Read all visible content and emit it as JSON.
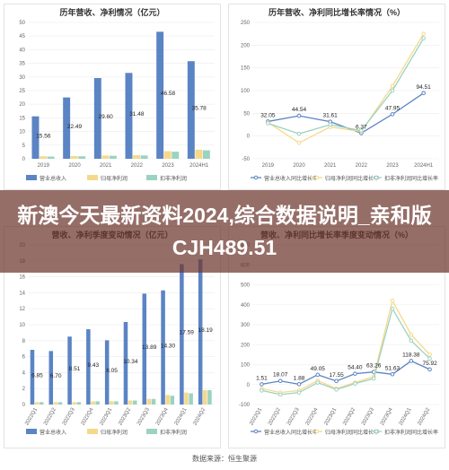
{
  "headline": "新澳今天最新资料2024,综合数据说明_亲和版CJH489.51",
  "source": "数据来源：恒生聚源",
  "colors": {
    "revenue": "#5b84c4",
    "net_profit": "#f5d98b",
    "deducted_profit": "#9bd3c1",
    "banner": "#6e362e"
  },
  "chart_data": [
    {
      "type": "bar",
      "title": "历年营收、净利情况（亿元）",
      "categories": [
        "2019",
        "2020",
        "2021",
        "2022",
        "2023",
        "2024H1"
      ],
      "series": [
        {
          "name": "营业总收入",
          "values": [
            15.56,
            22.49,
            29.6,
            31.48,
            46.58,
            35.78
          ]
        },
        {
          "name": "归母净利润",
          "values": [
            0.9,
            1.0,
            1.2,
            1.3,
            2.8,
            3.3
          ]
        },
        {
          "name": "扣非净利润",
          "values": [
            0.8,
            0.9,
            1.1,
            1.2,
            2.6,
            3.1
          ]
        }
      ],
      "data_labels": [
        "15.56",
        "22.49",
        "29.60",
        "31.48",
        "46.58",
        "35.78"
      ],
      "yticks": [
        "0",
        "5",
        "10",
        "15",
        "20",
        "25",
        "30",
        "35",
        "40",
        "45",
        "50"
      ],
      "ylim": [
        0,
        50
      ]
    },
    {
      "type": "line",
      "title": "历年营收、净利同比增长率情况（%）",
      "categories": [
        "2019",
        "2020",
        "2021",
        "2022",
        "2023",
        "2024H1"
      ],
      "series": [
        {
          "name": "营业总收入同比增长率",
          "values": [
            32.05,
            44.54,
            31.61,
            6.37,
            47.95,
            94.51
          ]
        },
        {
          "name": "归母净利润同比增长率",
          "values": [
            30,
            -15,
            20,
            10,
            110,
            225
          ]
        },
        {
          "name": "扣非净利润同比增长率",
          "values": [
            28,
            5,
            25,
            12,
            100,
            215
          ]
        }
      ],
      "data_labels": [
        "32.05",
        "44.54",
        "31.61",
        "6.37",
        "47.95",
        "94.51"
      ],
      "yticks": [
        "-50",
        "0",
        "50",
        "100",
        "150",
        "200",
        "250"
      ],
      "ylim": [
        -50,
        250
      ]
    },
    {
      "type": "bar",
      "title": "营收、净利季度变动情况（亿元）",
      "categories": [
        "2022Q1",
        "2022Q2",
        "2022Q3",
        "2022Q4",
        "2023Q1",
        "2023Q2",
        "2023Q3",
        "2023Q4",
        "2024Q1",
        "2024Q2"
      ],
      "series": [
        {
          "name": "营业总收入",
          "values": [
            6.85,
            6.7,
            8.51,
            9.43,
            8.05,
            10.34,
            13.89,
            14.3,
            17.59,
            18.19
          ]
        },
        {
          "name": "归母净利润",
          "values": [
            0.3,
            0.3,
            0.3,
            0.4,
            0.4,
            0.5,
            0.7,
            1.2,
            1.5,
            1.8
          ]
        },
        {
          "name": "扣非净利润",
          "values": [
            0.3,
            0.3,
            0.3,
            0.4,
            0.4,
            0.5,
            0.7,
            1.1,
            1.4,
            1.8
          ]
        }
      ],
      "data_labels": [
        "6.85",
        "6.70",
        "8.51",
        "9.43",
        "8.05",
        "10.34",
        "13.89",
        "14.30",
        "17.59",
        "18.19"
      ],
      "yticks": [
        "0",
        "2",
        "4",
        "6",
        "8",
        "10",
        "12",
        "14",
        "16",
        "18",
        "20"
      ],
      "ylim": [
        0,
        20
      ]
    },
    {
      "type": "line",
      "title": "营收、净利同比增长率季度变动情况（%）",
      "categories": [
        "2022Q1",
        "2022Q2",
        "2022Q3",
        "2022Q4",
        "2023Q1",
        "2023Q2",
        "2023Q3",
        "2023Q4",
        "2024Q1",
        "2024Q2"
      ],
      "series": [
        {
          "name": "营业总收入同比增长率",
          "values": [
            1.51,
            18.07,
            1.88,
            49.05,
            17.55,
            54.4,
            63.26,
            51.63,
            118.38,
            75.92
          ]
        },
        {
          "name": "归母净利润同比增长率",
          "values": [
            -20,
            -40,
            -30,
            20,
            -20,
            10,
            40,
            420,
            250,
            150
          ]
        },
        {
          "name": "扣非净利润同比增长率",
          "values": [
            -30,
            -50,
            -40,
            10,
            -25,
            5,
            30,
            380,
            220,
            130
          ]
        }
      ],
      "data_labels": [
        "1.51",
        "18.07",
        "1.88",
        "49.05",
        "17.55",
        "54.40",
        "63.26",
        "51.63",
        "118.38",
        "75.92"
      ],
      "yticks": [
        "-100",
        "0",
        "100",
        "200",
        "300",
        "400",
        "500",
        "600",
        "700"
      ],
      "ylim": [
        -100,
        700
      ]
    }
  ]
}
